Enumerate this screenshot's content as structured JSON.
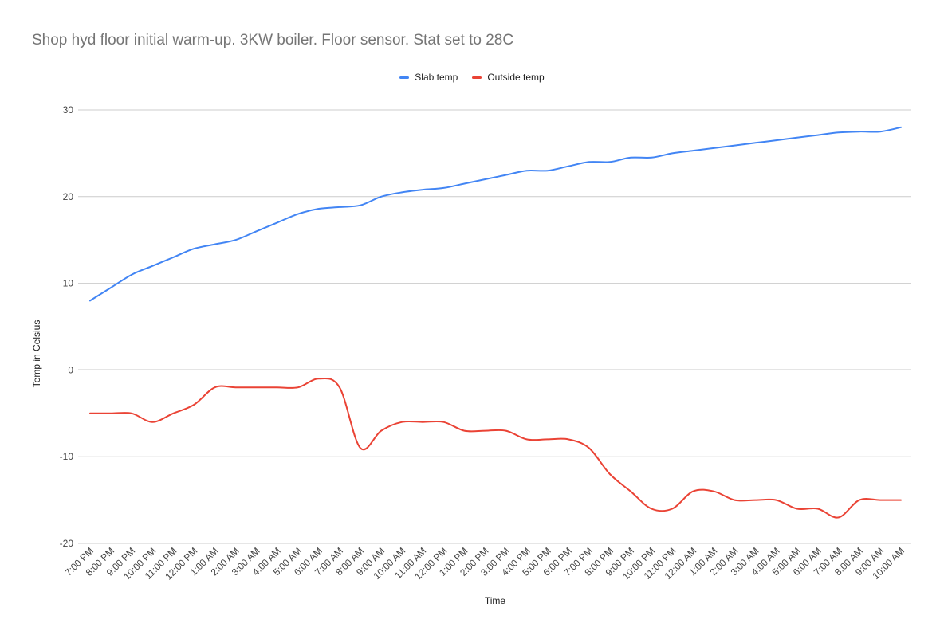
{
  "chart_data": {
    "type": "line",
    "title": "Shop hyd floor initial warm-up. 3KW boiler. Floor sensor. Stat set to 28C",
    "xlabel": "Time",
    "ylabel": "Temp in Celsius",
    "ylim": [
      -20,
      30
    ],
    "yticks": [
      30,
      20,
      10,
      0,
      -10,
      -20
    ],
    "grid": true,
    "legend_position": "top-center",
    "categories": [
      "7:00 PM",
      "8:00 PM",
      "9:00 PM",
      "10:00 PM",
      "11:00 PM",
      "12:00 PM",
      "1:00 AM",
      "2:00 AM",
      "3:00 AM",
      "4:00 AM",
      "5:00 AM",
      "6:00 AM",
      "7:00 AM",
      "8:00 AM",
      "9:00 AM",
      "10:00 AM",
      "11:00 AM",
      "12:00 PM",
      "1:00 PM",
      "2:00 PM",
      "3:00 PM",
      "4:00 PM",
      "5:00 PM",
      "6:00 PM",
      "7:00 PM",
      "8:00 PM",
      "9:00 PM",
      "10:00 PM",
      "11:00 PM",
      "12:00 AM",
      "1:00 AM",
      "2:00 AM",
      "3:00 AM",
      "4:00 AM",
      "5:00 AM",
      "6:00 AM",
      "7:00 AM",
      "8:00 AM",
      "9:00 AM",
      "10:00 AM"
    ],
    "series": [
      {
        "name": "Slab temp",
        "color": "#4285f4",
        "values": [
          8,
          9.5,
          11,
          12,
          13,
          14,
          14.5,
          15,
          16,
          17,
          18,
          18.6,
          18.8,
          19,
          20,
          20.5,
          20.8,
          21,
          21.5,
          22,
          22.5,
          23,
          23,
          23.5,
          24,
          24,
          24.5,
          24.5,
          25,
          25.3,
          25.6,
          25.9,
          26.2,
          26.5,
          26.8,
          27.1,
          27.4,
          27.5,
          27.5,
          28
        ]
      },
      {
        "name": "Outside temp",
        "color": "#ea4335",
        "values": [
          -5,
          -5,
          -5,
          -6,
          -5,
          -4,
          -2,
          -2,
          -2,
          -2,
          -2,
          -1,
          -2,
          -9,
          -7,
          -6,
          -6,
          -6,
          -7,
          -7,
          -7,
          -8,
          -8,
          -8,
          -9,
          -12,
          -14,
          -16,
          -16,
          -14,
          -14,
          -15,
          -15,
          -15,
          -16,
          -16,
          -17,
          -15,
          -15,
          -15
        ]
      }
    ]
  }
}
